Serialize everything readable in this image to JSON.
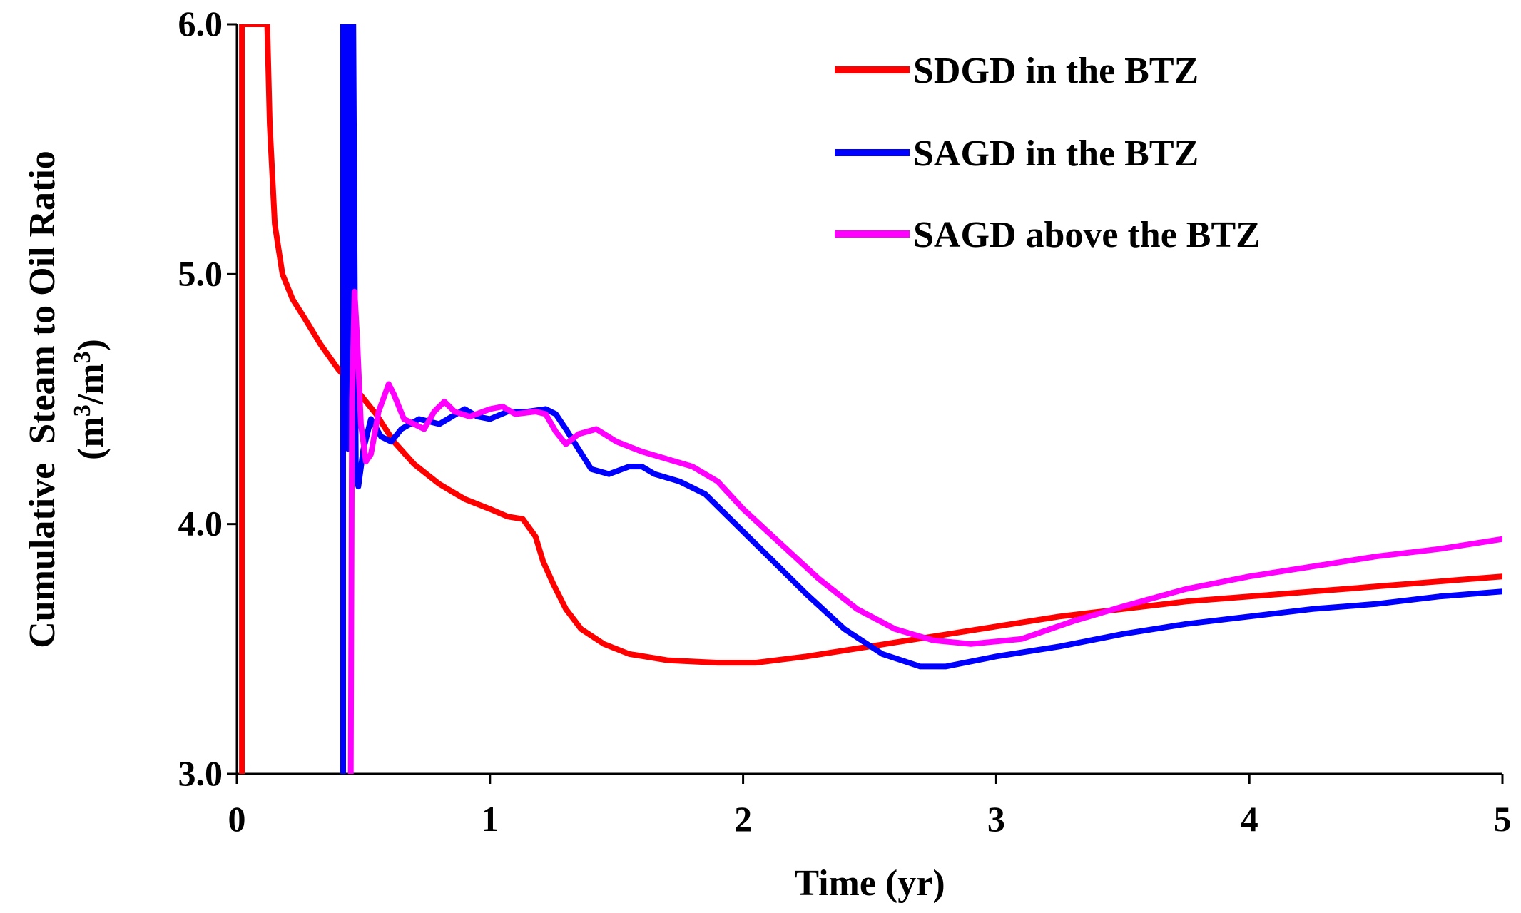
{
  "chart_data": {
    "type": "line",
    "title": "",
    "xlabel": "Time (yr)",
    "ylabel_line1": "Cumulative  Steam to Oil Ratio",
    "ylabel_line2": {
      "prefix": "(m",
      "sup1": "3",
      "mid": "/m",
      "sup2": "3",
      "suffix": ")"
    },
    "xlim": [
      0,
      5
    ],
    "ylim": [
      3.0,
      6.0
    ],
    "xticks": [
      0,
      1,
      2,
      3,
      4,
      5
    ],
    "xtick_labels": [
      "0",
      "1",
      "2",
      "3",
      "4",
      "5"
    ],
    "yticks": [
      3.0,
      4.0,
      5.0,
      6.0
    ],
    "ytick_labels": [
      "3.0",
      "4.0",
      "5.0",
      "6.0"
    ],
    "grid": false,
    "legend_position": "top-right",
    "series": [
      {
        "name": "SDGD in the BTZ",
        "color": "#ff0000",
        "points": [
          [
            0.02,
            3.0
          ],
          [
            0.02,
            6.0
          ],
          [
            0.12,
            6.0
          ],
          [
            0.13,
            5.6
          ],
          [
            0.15,
            5.2
          ],
          [
            0.18,
            5.0
          ],
          [
            0.22,
            4.9
          ],
          [
            0.27,
            4.82
          ],
          [
            0.33,
            4.72
          ],
          [
            0.4,
            4.62
          ],
          [
            0.47,
            4.54
          ],
          [
            0.55,
            4.44
          ],
          [
            0.62,
            4.33
          ],
          [
            0.7,
            4.24
          ],
          [
            0.8,
            4.16
          ],
          [
            0.9,
            4.1
          ],
          [
            1.0,
            4.06
          ],
          [
            1.07,
            4.03
          ],
          [
            1.13,
            4.02
          ],
          [
            1.18,
            3.95
          ],
          [
            1.21,
            3.85
          ],
          [
            1.25,
            3.76
          ],
          [
            1.3,
            3.66
          ],
          [
            1.36,
            3.58
          ],
          [
            1.45,
            3.52
          ],
          [
            1.55,
            3.48
          ],
          [
            1.7,
            3.455
          ],
          [
            1.9,
            3.445
          ],
          [
            2.05,
            3.445
          ],
          [
            2.25,
            3.47
          ],
          [
            2.5,
            3.51
          ],
          [
            2.75,
            3.55
          ],
          [
            3.0,
            3.59
          ],
          [
            3.25,
            3.63
          ],
          [
            3.5,
            3.66
          ],
          [
            3.75,
            3.69
          ],
          [
            4.0,
            3.71
          ],
          [
            4.25,
            3.73
          ],
          [
            4.5,
            3.75
          ],
          [
            4.75,
            3.77
          ],
          [
            5.0,
            3.79
          ]
        ]
      },
      {
        "name": "SAGD in the BTZ",
        "color": "#0000ff",
        "points": [
          [
            0.42,
            3.0
          ],
          [
            0.42,
            6.0
          ],
          [
            0.43,
            6.0
          ],
          [
            0.44,
            4.3
          ],
          [
            0.45,
            6.0
          ],
          [
            0.46,
            6.0
          ],
          [
            0.47,
            4.2
          ],
          [
            0.48,
            4.15
          ],
          [
            0.5,
            4.3
          ],
          [
            0.53,
            4.42
          ],
          [
            0.57,
            4.35
          ],
          [
            0.61,
            4.33
          ],
          [
            0.65,
            4.38
          ],
          [
            0.72,
            4.42
          ],
          [
            0.8,
            4.4
          ],
          [
            0.9,
            4.46
          ],
          [
            0.95,
            4.43
          ],
          [
            1.0,
            4.42
          ],
          [
            1.07,
            4.45
          ],
          [
            1.15,
            4.45
          ],
          [
            1.22,
            4.46
          ],
          [
            1.26,
            4.44
          ],
          [
            1.3,
            4.38
          ],
          [
            1.35,
            4.3
          ],
          [
            1.4,
            4.22
          ],
          [
            1.47,
            4.2
          ],
          [
            1.55,
            4.23
          ],
          [
            1.6,
            4.23
          ],
          [
            1.65,
            4.2
          ],
          [
            1.75,
            4.17
          ],
          [
            1.85,
            4.12
          ],
          [
            1.95,
            4.02
          ],
          [
            2.1,
            3.87
          ],
          [
            2.25,
            3.72
          ],
          [
            2.4,
            3.58
          ],
          [
            2.55,
            3.48
          ],
          [
            2.7,
            3.43
          ],
          [
            2.8,
            3.43
          ],
          [
            3.0,
            3.47
          ],
          [
            3.25,
            3.51
          ],
          [
            3.5,
            3.56
          ],
          [
            3.75,
            3.6
          ],
          [
            4.0,
            3.63
          ],
          [
            4.25,
            3.66
          ],
          [
            4.5,
            3.68
          ],
          [
            4.75,
            3.71
          ],
          [
            5.0,
            3.73
          ]
        ]
      },
      {
        "name": "SAGD above the BTZ",
        "color": "#ff00ff",
        "points": [
          [
            0.45,
            3.0
          ],
          [
            0.455,
            4.5
          ],
          [
            0.465,
            4.93
          ],
          [
            0.475,
            4.75
          ],
          [
            0.49,
            4.4
          ],
          [
            0.51,
            4.25
          ],
          [
            0.53,
            4.28
          ],
          [
            0.56,
            4.45
          ],
          [
            0.6,
            4.56
          ],
          [
            0.62,
            4.52
          ],
          [
            0.66,
            4.42
          ],
          [
            0.7,
            4.4
          ],
          [
            0.74,
            4.38
          ],
          [
            0.78,
            4.45
          ],
          [
            0.82,
            4.49
          ],
          [
            0.86,
            4.45
          ],
          [
            0.92,
            4.43
          ],
          [
            1.0,
            4.46
          ],
          [
            1.05,
            4.47
          ],
          [
            1.1,
            4.44
          ],
          [
            1.18,
            4.45
          ],
          [
            1.22,
            4.44
          ],
          [
            1.26,
            4.37
          ],
          [
            1.3,
            4.32
          ],
          [
            1.35,
            4.36
          ],
          [
            1.42,
            4.38
          ],
          [
            1.5,
            4.33
          ],
          [
            1.6,
            4.29
          ],
          [
            1.7,
            4.26
          ],
          [
            1.8,
            4.23
          ],
          [
            1.9,
            4.17
          ],
          [
            2.0,
            4.06
          ],
          [
            2.15,
            3.92
          ],
          [
            2.3,
            3.78
          ],
          [
            2.45,
            3.66
          ],
          [
            2.6,
            3.58
          ],
          [
            2.75,
            3.535
          ],
          [
            2.9,
            3.52
          ],
          [
            3.1,
            3.54
          ],
          [
            3.3,
            3.61
          ],
          [
            3.5,
            3.67
          ],
          [
            3.75,
            3.74
          ],
          [
            4.0,
            3.79
          ],
          [
            4.25,
            3.83
          ],
          [
            4.5,
            3.87
          ],
          [
            4.75,
            3.9
          ],
          [
            5.0,
            3.94
          ]
        ]
      }
    ]
  }
}
